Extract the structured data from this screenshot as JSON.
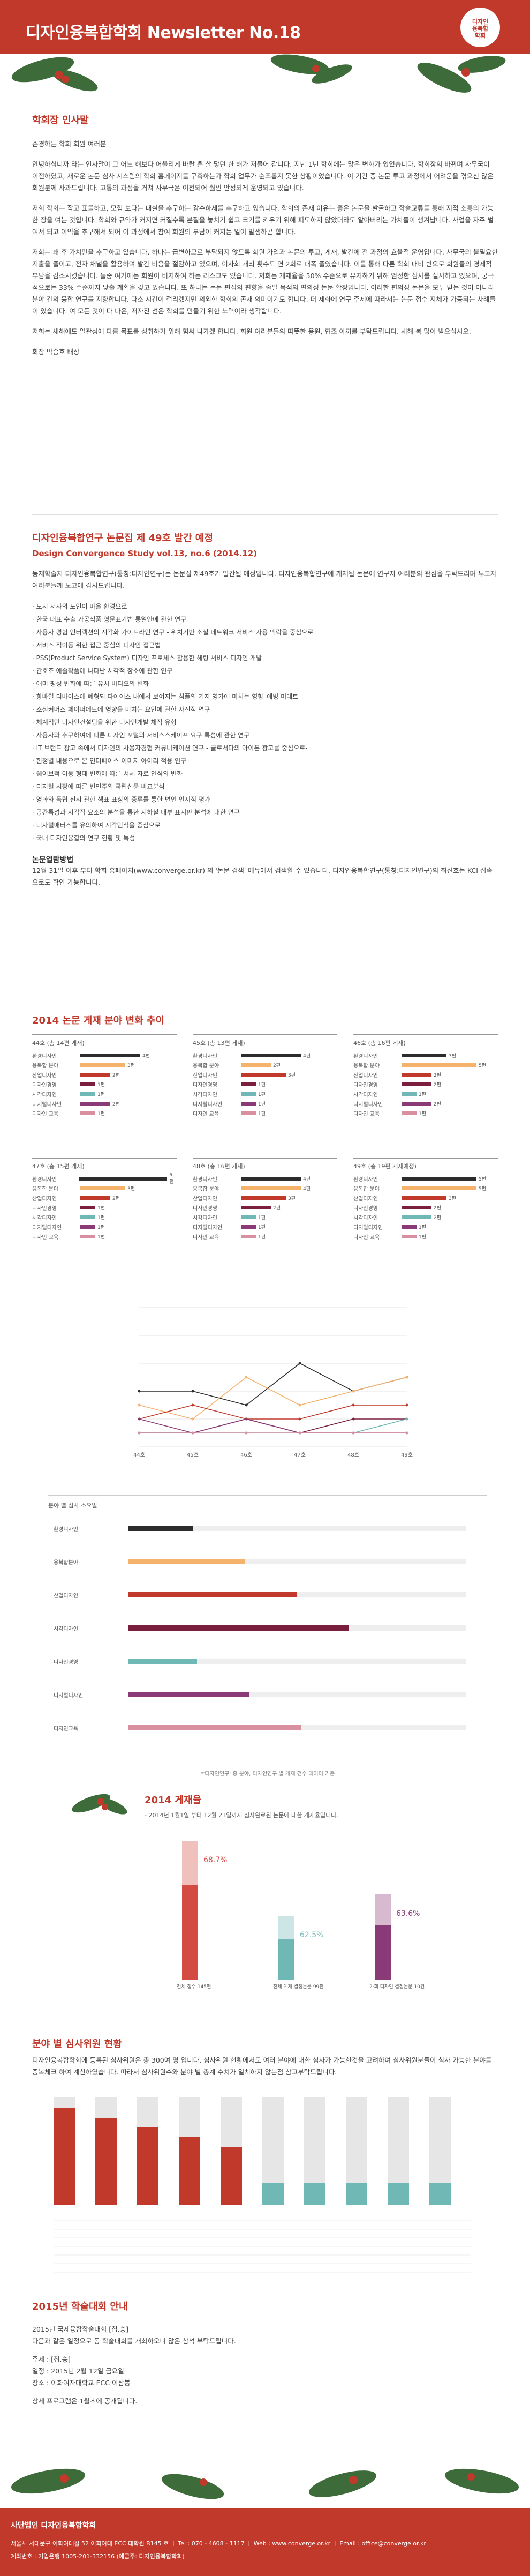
{
  "header": {
    "title": "디자인융복합학회 Newsletter No.18",
    "logo_line1": "디자인",
    "logo_line2": "융복합",
    "logo_line3": "학회"
  },
  "greeting": {
    "title": "학회장 인사말",
    "paras": [
      "존경하는 학회 회원 여러분",
      "안녕하십니까 라는 인사말이 그 어느 해보다 어울리게 바랄 뿐 살 닿던 한 해가 저물어 갑니다. 지난 1년 학회에는 많은 변화가 있었습니다. 학회장의 바뀌며 사무국이 이전하였고, 새로운 논문 심사 시스템의 학회 홈페이지를 구축하는가 학회 업무가 순조롭지 못한 상황이었습니다. 이 기간 중 논문 투고 과정에서 어려움을 겪으신 많은 회원분께 사과드립니다. 고통의 과정을 거쳐 사무국은 이전되어 훨씬 안정되게 운영되고 있습니다.",
      "저희 학회는 작고 표를하고, 모험 보다는 내실을 추구하는 감수하세를 추구하고 있습니다. 학회의 존재 이유는 좋은 논문을 발굴하고 학술교류를 통해 지적 소통의 가능한 장을 여는 것입니다. 학회와 규약가 커지면 커질수록 본질을 놓치기 쉽고 크기를 키우기 위해 피도하지 않았더라도 알아버리는 가치들이 생겨납니다. 사업을 자주 벌여서 되고 이익을 추구해서 되어 이 과정에서 참여 회원의 부담이 커지는 일이 발생하곤 합니다.",
      "저희는 꽤 후 가치만을 추구하고 있습니다. 하나는 급변하므로 부담되지 않도록 회원 가입과 논문의 투고, 게재, 발간에 전 과정의 효율적 운영입니다. 사무국의 불필요한 지출을 줄이고, 전자 채널을 활용하여 발간 비용을 절감하고 있으며, 이사회 개최 횟수도 연 2회로 대폭 줄였습니다. 이를 통해 다른 학회 대비 반으로 회원들의 경제적 부담을 감소시켰습니다. 둘중 여가에는 회원이 비지하여 하는 리스크도 있습니다. 저희는 게재율을 50% 수준으로 유지하기 위해 엄정한 심사를 실시하고 있으며, 궁극적으로는 33% 수준까지 낮출 계획을 갖고 있습니다. 또 하나는 논문 편집의 편향을 줄일 목적의 편의성 논문 확장입니다. 이러한 편의성 논문을 모두 받는 것이 아니라 분야 간의 융합 연구를 지향합니다. 다소 시간이 걸리겠지만 의외한 학회의 존재 의미이기도 합니다. 더 제화에 연구 주제에 따라서는 논문 접수 지체가 가중되는 사례들이 있습니다. 여 모든 것이 다 나은, 저자진 선은 학회를 만들기 위한 노력이라 생각합니다.",
      "저희는 새해에도 일관성에 다름 목표를 성취하기 위해 힘써 나가겠 합니다. 회원 여러분들의 따뜻한 응원, 협조 아끼를 부탁드립니다. 새해 복 많이 받으십시오.",
      "회장 박승호 배상"
    ]
  },
  "issue": {
    "title": "디자인융복합연구 논문집 제 49호 발간 예정",
    "subtitle": "Design Convergence Study vol.13, no.6 (2014.12)",
    "intro": "등재학술지 디자인융복합연구(통칭:디자인연구)는 논문집 제49호가 발간될 예정입니다. 디자인융복합연구에 게재될 논문에 연구자 여러분의 관심을 부탁드리며 투고자 여러분들께 노고에 감사드립니다.",
    "papers": [
      "도시 서사의 노인이 마을 환경으로",
      "한국 대표 수출 가공식품 영문표기법 통일안에 관한 연구",
      "사용자 경험 인터랙션의 시각화 가이드라인 연구 - 위치기반 소셜 네트워크 서비스 사용 맥락을 중심으로",
      "서비스 적이동 위한 접근 중심의 디자인 접근법",
      "PSS(Product Service System) 디자인 프로세스 활용한 헤링 서비스 디자인 개발",
      "간호조 예술작품에 나타난 시각적 장소에 관한 연구",
      "애미 평성 변화에 따른 유치 비디오의 변화",
      "향바일 디바이스에 폐형되 다이어스 내에서 보여지는 심플의 기지 영가에 미치는 영향_에빙 미레트",
      "소셜커머스 페이퍼에드에 영향을 미치는 요인에 관한 사진적 연구",
      "체계적인 디자인컨설팅을 위한 디자인개발 체적 유형",
      "사용자와 추구하여에 따른 디자인 포털의 서비스스케이프 요구 특성에 관한 연구",
      "IT 브랜드 광고 속에서 디자인의 사용자경험 커뮤니케이션 연구 - 글로서다의 아이폰 광고를 중심으로-",
      "헌정별 내용으로 본 인터페이스 이미지 아이리 적용 연구",
      "웨이브적 이동 형태 변화에 따른 서체 자료 인식의 변화",
      "디지털 시장에 따른 빈민주의 국립신문 비교분석",
      "영화와 독립 전시 관한 색표 표상의 종류를 통한 변인 인지적 평가",
      "공간특성과 시각적 요소의 분석을 통한 지하철 내부 표지판 분석에 대한 연구",
      "디자털매터스를 유의하여 시각인식을 중심으로",
      "국내 디자인융합의 연구 현황 및 특성"
    ],
    "method_title": "논문열람방법",
    "method": "12월 31일 이후 부터 학회 홈페이지(www.converge.or.kr) 의 '논문 검색' 메뉴에서 검색할 수 있습니다. 디자인융복합연구(통칭:디자인연구)의 최신호는 KCI 접속으로도 확인 가능합니다."
  },
  "stats": {
    "title": "2014 논문 게재 분야 변화 추이",
    "note": "*'디자인연구' 중 분야, 디자인연구 별 게재 건수 데이터 기준",
    "mini": [
      {
        "title": "44호 (총 14편 게재)",
        "rows": [
          [
            "환경디자인",
            4
          ],
          [
            "융복합 분야",
            3
          ],
          [
            "산업디자인",
            2
          ],
          [
            "디자인경영",
            1
          ],
          [
            "시각디자인",
            1
          ],
          [
            "디지털디자인",
            2
          ],
          [
            "디자인 교육",
            1
          ]
        ]
      },
      {
        "title": "45호 (총 13편 게재)",
        "rows": [
          [
            "환경디자인",
            4
          ],
          [
            "융복합 분야",
            2
          ],
          [
            "산업디자인",
            3
          ],
          [
            "디자인경영",
            1
          ],
          [
            "시각디자인",
            1
          ],
          [
            "디지털디자인",
            1
          ],
          [
            "디자인 교육",
            1
          ]
        ]
      },
      {
        "title": "46호 (총 16편 게재)",
        "rows": [
          [
            "환경디자인",
            3
          ],
          [
            "융복합 분야",
            5
          ],
          [
            "산업디자인",
            2
          ],
          [
            "디자인경영",
            2
          ],
          [
            "시각디자인",
            1
          ],
          [
            "디지털디자인",
            2
          ],
          [
            "디자인 교육",
            1
          ]
        ]
      },
      {
        "title": "47호 (총 15편 게재)",
        "rows": [
          [
            "환경디자인",
            6
          ],
          [
            "융복합 분야",
            3
          ],
          [
            "산업디자인",
            2
          ],
          [
            "디자인경영",
            1
          ],
          [
            "시각디자인",
            1
          ],
          [
            "디지털디자인",
            1
          ],
          [
            "디자인 교육",
            1
          ]
        ]
      },
      {
        "title": "48호 (총 16편 게재)",
        "rows": [
          [
            "환경디자인",
            4
          ],
          [
            "융복합 분야",
            4
          ],
          [
            "산업디자인",
            3
          ],
          [
            "디자인경영",
            2
          ],
          [
            "시각디자인",
            1
          ],
          [
            "디지털디자인",
            1
          ],
          [
            "디자인 교육",
            1
          ]
        ]
      },
      {
        "title": "49호 (총 19편 게재예정)",
        "rows": [
          [
            "환경디자인",
            5
          ],
          [
            "융복합 분야",
            5
          ],
          [
            "산업디자인",
            3
          ],
          [
            "디자인경영",
            2
          ],
          [
            "시각디자인",
            2
          ],
          [
            "디지털디자인",
            1
          ],
          [
            "디자인 교육",
            1
          ]
        ]
      }
    ],
    "line_chart": {
      "type": "line",
      "categories": [
        "44호",
        "45호",
        "46호",
        "47호",
        "48호",
        "49호"
      ],
      "ylim": [
        0,
        10
      ]
    },
    "hbar_title": "분야 별 심사 소요일",
    "hbar_cats": [
      "환경디자인",
      "융복합분야",
      "산업디자인",
      "시각디자인",
      "디자인경영",
      "디지털디자인",
      "디자인교육"
    ]
  },
  "pub2014": {
    "title": "2014 게재율",
    "sub": "- 2014년 1월1일 부터 12월 23일까지 심사완료된 논문에 대한 게재율입니다.",
    "bars": [
      {
        "label": "전체 접수 145편",
        "pct": "68.7%",
        "color": "#d44b43"
      },
      {
        "label": "전체 게재 결정논문 99편",
        "pct": "62.5%",
        "color": "#6fb8b5"
      },
      {
        "label": "2·회 디자인 결정논문 10건",
        "pct": "63.6%",
        "color": "#8b3a78"
      }
    ]
  },
  "judges": {
    "title": "분야 별 심사위원 현황",
    "para": "디자인융복합학회에 등록된 심사위원은 총 300여 명 입니다. 심사위원 현황에서도 여러 분야에 대한 심사가 가능한것을 고려하여 심사위원분들이 심사 가능한 분야를 중복체크 하여 계산하였습니다. 따라서 심사위원수와 분야 별 총계 수치가 일치하지 않는점 참고부탁드립니다."
  },
  "event": {
    "title": "2015년 학술대회 안내",
    "lines": [
      "2015년 국제융합학술대회 [칩.승]",
      "다음과 같은 일정으로 동 학술대회를 개최하오니 많은 참석 부탁드립니다.",
      "주제 : [칩.승]",
      "일정 : 2015년 2월 12일 금요일",
      "장소 : 이화여자대학교 ECC 이삼봉",
      "상세 프로그램은 1월초에 공개됩니다."
    ]
  },
  "footer": {
    "org": "사단법인 디자인융복합학회",
    "addr": "서울시 서대문구 이화여대길 52 이화여대 ECC 대학원 B145 호 ㅣ Tel : 070 - 4608 - 1117 ㅣ Web : www.converge.or.kr ㅣ Email : office@converge.or.kr",
    "bank": "계좌번호 : 기업은행 1005-201-332156 (예금주: 디자인융복합학회)"
  }
}
